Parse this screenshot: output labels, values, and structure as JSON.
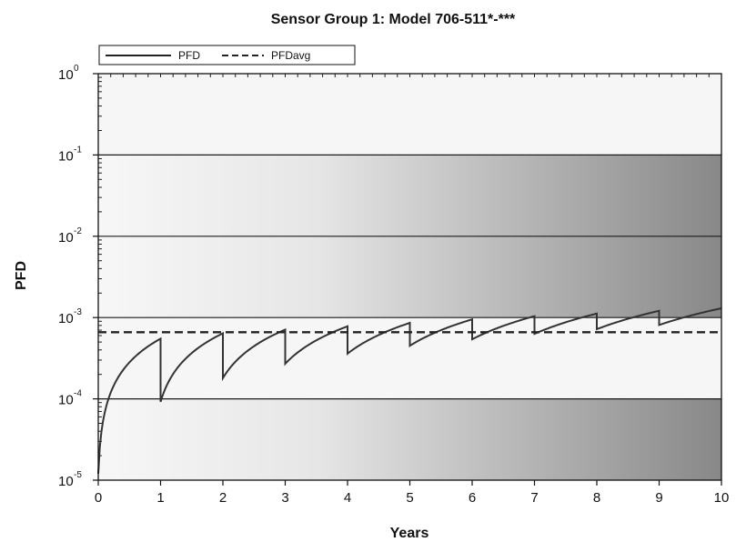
{
  "chart_data": {
    "type": "line",
    "title": "Sensor Group 1: Model 706-511*-***",
    "xlabel": "Years",
    "ylabel": "PFD",
    "xlim": [
      0,
      10
    ],
    "ylim": [
      1e-05,
      1
    ],
    "yscale": "log",
    "x_ticks": [
      "0",
      "1",
      "2",
      "3",
      "4",
      "5",
      "6",
      "7",
      "8",
      "9",
      "10"
    ],
    "y_ticks": [
      {
        "base": "10",
        "exp": "-5",
        "value": 1e-05
      },
      {
        "base": "10",
        "exp": "-4",
        "value": 0.0001
      },
      {
        "base": "10",
        "exp": "-3",
        "value": 0.001
      },
      {
        "base": "10",
        "exp": "-2",
        "value": 0.01
      },
      {
        "base": "10",
        "exp": "-1",
        "value": 0.1
      },
      {
        "base": "10",
        "exp": "0",
        "value": 1
      }
    ],
    "bands": [
      {
        "from": 1e-05,
        "to": 0.0001,
        "level": 1
      },
      {
        "from": 0.001,
        "to": 0.01,
        "level": 3
      },
      {
        "from": 0.01,
        "to": 0.1,
        "level": 2
      }
    ],
    "band_colors": {
      "light": "#f7f7f7",
      "dark": "#888888",
      "plain": "#f6f6f6"
    },
    "legend_position": "top-left",
    "series": [
      {
        "name": "PFD",
        "style": "solid",
        "color": "#333333",
        "cycles": [
          {
            "start": 0,
            "end": 1,
            "pfd_start": 1.2e-05,
            "pfd_end": 0.00055
          },
          {
            "start": 1,
            "end": 2,
            "pfd_start": 9.2e-05,
            "pfd_end": 0.00064
          },
          {
            "start": 2,
            "end": 3,
            "pfd_start": 0.00018,
            "pfd_end": 0.00071
          },
          {
            "start": 3,
            "end": 4,
            "pfd_start": 0.00027,
            "pfd_end": 0.00078
          },
          {
            "start": 4,
            "end": 5,
            "pfd_start": 0.00036,
            "pfd_end": 0.00086
          },
          {
            "start": 5,
            "end": 6,
            "pfd_start": 0.00045,
            "pfd_end": 0.00095
          },
          {
            "start": 6,
            "end": 7,
            "pfd_start": 0.00054,
            "pfd_end": 0.00104
          },
          {
            "start": 7,
            "end": 8,
            "pfd_start": 0.00063,
            "pfd_end": 0.00112
          },
          {
            "start": 8,
            "end": 9,
            "pfd_start": 0.00072,
            "pfd_end": 0.00121
          },
          {
            "start": 9,
            "end": 10,
            "pfd_start": 0.00081,
            "pfd_end": 0.0013
          }
        ]
      },
      {
        "name": "PFDavg",
        "style": "dashed",
        "color": "#222222",
        "x": [
          0,
          10
        ],
        "values": [
          0.00066,
          0.00066
        ]
      }
    ]
  }
}
